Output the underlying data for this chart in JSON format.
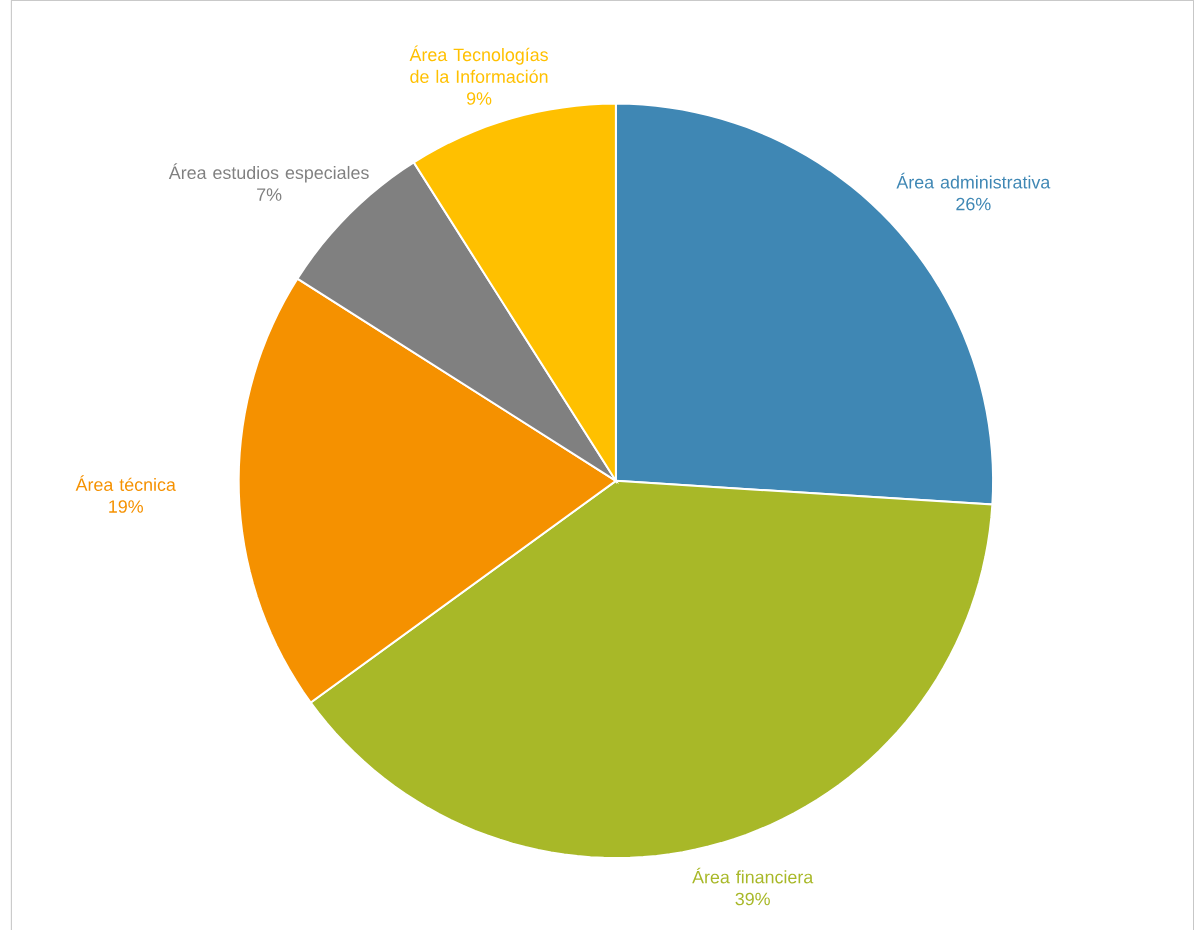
{
  "chart_data": {
    "type": "pie",
    "categories": [
      "Área administrativa",
      "Área financiera",
      "Área técnica",
      "Área estudios especiales",
      "Área Tecnologías de la Información"
    ],
    "values": [
      26,
      39,
      19,
      7,
      9
    ],
    "value_labels": [
      "26%",
      "39%",
      "19%",
      "7%",
      "9%"
    ],
    "colors": [
      "#3f87b4",
      "#a8b828",
      "#f59100",
      "#808080",
      "#ffc000"
    ]
  }
}
